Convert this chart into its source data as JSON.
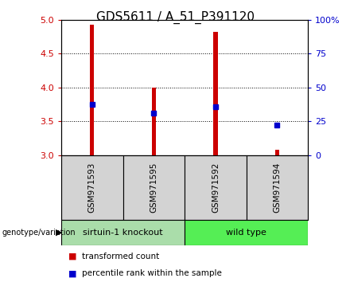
{
  "title": "GDS5611 / A_51_P391120",
  "samples": [
    "GSM971593",
    "GSM971595",
    "GSM971592",
    "GSM971594"
  ],
  "bar_bottoms": [
    3.0,
    3.0,
    3.0,
    3.0
  ],
  "bar_tops": [
    4.93,
    4.0,
    4.82,
    3.08
  ],
  "blue_markers": [
    3.75,
    3.62,
    3.72,
    3.44
  ],
  "ylim": [
    3.0,
    5.0
  ],
  "yticks_left": [
    3.0,
    3.5,
    4.0,
    4.5,
    5.0
  ],
  "yticks_right": [
    0,
    25,
    50,
    75,
    100
  ],
  "bar_color": "#cc0000",
  "blue_color": "#0000cc",
  "groups": [
    {
      "label": "sirtuin-1 knockout",
      "samples": [
        0,
        1
      ],
      "color": "#aaddaa"
    },
    {
      "label": "wild type",
      "samples": [
        2,
        3
      ],
      "color": "#55ee55"
    }
  ],
  "legend_red": "transformed count",
  "legend_blue": "percentile rank within the sample",
  "genotype_label": "genotype/variation",
  "left_color": "#cc0000",
  "right_color": "#0000cc",
  "title_fontsize": 11,
  "grid_color": "#000000",
  "bar_width": 0.07
}
